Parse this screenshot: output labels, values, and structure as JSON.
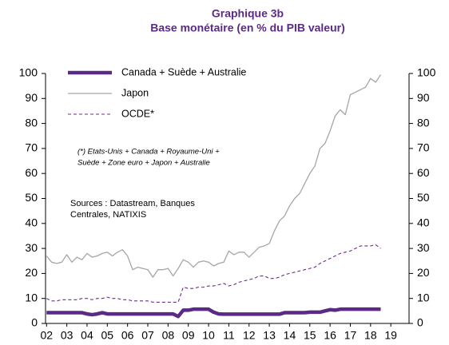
{
  "chart_data": {
    "type": "line",
    "title": [
      "Graphique 3b",
      "Base monétaire (en % du PIB valeur)"
    ],
    "annotations": {
      "footnote": [
        "(*) Etats-Unis + Canada + Royaume-Uni +",
        "Suède + Zone euro + Japon + Australie"
      ],
      "sources": [
        "Sources : Datastream, Banques",
        "Centrales, NATIXIS"
      ]
    },
    "x": [
      2,
      2.25,
      2.5,
      2.75,
      3,
      3.25,
      3.5,
      3.75,
      4,
      4.25,
      4.5,
      4.75,
      5,
      5.25,
      5.5,
      5.75,
      6,
      6.25,
      6.5,
      6.75,
      7,
      7.25,
      7.5,
      7.75,
      8,
      8.25,
      8.5,
      8.75,
      9,
      9.25,
      9.5,
      9.75,
      10,
      10.25,
      10.5,
      10.75,
      11,
      11.25,
      11.5,
      11.75,
      12,
      12.25,
      12.5,
      12.75,
      13,
      13.25,
      13.5,
      13.75,
      14,
      14.25,
      14.5,
      14.75,
      15,
      15.25,
      15.5,
      15.75,
      16,
      16.25,
      16.5,
      16.75,
      17,
      17.25,
      17.5,
      17.75,
      18,
      18.25,
      18.5
    ],
    "series": [
      {
        "name": "Canada + Suède + Australie",
        "color": "#5b2a86",
        "linewidth": 4.5,
        "dash": false,
        "values": [
          4.3,
          4.3,
          4.3,
          4.3,
          4.3,
          4.3,
          4.3,
          4.3,
          3.8,
          3.5,
          3.8,
          4.3,
          3.8,
          3.8,
          3.8,
          3.8,
          3.8,
          3.8,
          3.8,
          3.8,
          3.8,
          3.8,
          3.8,
          3.8,
          3.8,
          3.8,
          2.8,
          5.3,
          5.3,
          5.7,
          5.7,
          5.7,
          5.7,
          4.5,
          3.8,
          3.7,
          3.7,
          3.7,
          3.7,
          3.7,
          3.7,
          3.7,
          3.7,
          3.7,
          3.7,
          3.7,
          3.7,
          4.3,
          4.3,
          4.3,
          4.3,
          4.3,
          4.5,
          4.5,
          4.5,
          5,
          5.5,
          5.3,
          5.7,
          5.7,
          5.7,
          5.7,
          5.7,
          5.7,
          5.7,
          5.7,
          5.7
        ]
      },
      {
        "name": "Japon",
        "color": "#a6a6a6",
        "linewidth": 1.3,
        "dash": false,
        "values": [
          27,
          24.5,
          24,
          24.5,
          27.5,
          24.5,
          26.5,
          25.5,
          28,
          26.5,
          27,
          28,
          28.5,
          27,
          28.5,
          29.5,
          27,
          21.5,
          22.5,
          22,
          21.5,
          18.5,
          21.5,
          21.5,
          22,
          19,
          22,
          25.5,
          24.5,
          22.5,
          24.5,
          25,
          24.5,
          23,
          24,
          24.5,
          29,
          27.5,
          28.5,
          28.5,
          26.5,
          28.5,
          30.5,
          31,
          32,
          37,
          41,
          43,
          47,
          50,
          52,
          56,
          60,
          63,
          70,
          72,
          77,
          83,
          85.5,
          83.5,
          91.5,
          92.5,
          93.5,
          94.5,
          98,
          96.5,
          99.5
        ]
      },
      {
        "name": "OCDE*",
        "color": "#6b2d8a",
        "linewidth": 1.1,
        "dash": true,
        "values": [
          10,
          9,
          9,
          9.5,
          9.5,
          9.5,
          9.5,
          10,
          10,
          9.5,
          10,
          10,
          10.5,
          10,
          10,
          9.5,
          9.5,
          9,
          9,
          9,
          9,
          8.5,
          8.5,
          8.5,
          8.5,
          8.5,
          8.5,
          14.5,
          14,
          14,
          14.5,
          14.5,
          15,
          15,
          15.5,
          16,
          15,
          15.5,
          16.5,
          17,
          17.5,
          18,
          19,
          19,
          18,
          18,
          18.5,
          19.5,
          20,
          20.5,
          21,
          21.5,
          22,
          22.5,
          24,
          25,
          26,
          27,
          28,
          28.5,
          29,
          30,
          31,
          31,
          31,
          31.5,
          30
        ]
      }
    ],
    "xlim": [
      1.95,
      19.9
    ],
    "xticks": [
      {
        "value": 2,
        "label": "02"
      },
      {
        "value": 3,
        "label": "03"
      },
      {
        "value": 4,
        "label": "04"
      },
      {
        "value": 5,
        "label": "05"
      },
      {
        "value": 6,
        "label": "06"
      },
      {
        "value": 7,
        "label": "07"
      },
      {
        "value": 8,
        "label": "08"
      },
      {
        "value": 9,
        "label": "09"
      },
      10,
      11,
      12,
      13,
      14,
      15,
      16,
      17,
      18,
      19
    ],
    "ylim": [
      0,
      100
    ],
    "yticks": [
      0,
      10,
      20,
      30,
      40,
      50,
      60,
      70,
      80,
      90,
      100
    ],
    "y2lim": [
      0,
      100
    ],
    "y2ticks": [
      0,
      10,
      20,
      30,
      40,
      50,
      60,
      70,
      80,
      90,
      100
    ],
    "legend": "upper left"
  }
}
